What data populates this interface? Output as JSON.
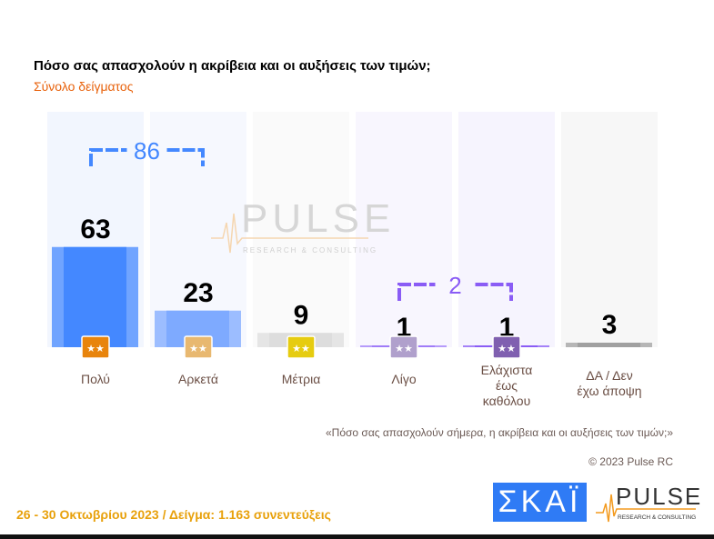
{
  "title": "Πόσο σας απασχολούν η ακρίβεια και οι αυξήσεις των τιμών;",
  "subtitle": "Σύνολο δείγματος",
  "chart_data": {
    "type": "bar",
    "categories": [
      "Πολύ",
      "Αρκετά",
      "Μέτρια",
      "Λίγο",
      "Ελάχιστα έως καθόλου",
      "ΔΑ / Δεν έχω άποψη"
    ],
    "values": [
      63,
      23,
      9,
      1,
      1,
      3
    ],
    "ylim": [
      0,
      100
    ],
    "colors": [
      "#4488ff",
      "#7eaaff",
      "#dddddd",
      "#a07cf8",
      "#8a5cf5",
      "#a0a0a0"
    ],
    "panel_colors": [
      "#f2f6fe",
      "#f6f8fe",
      "#fafafa",
      "#f8f6fe",
      "#f6f4fe",
      "#f7f7f7"
    ],
    "icon_colors": [
      "#e8840c",
      "#e8b870",
      "#e6cc10",
      "#b0a0cc",
      "#8060b0",
      null
    ],
    "groups": [
      {
        "label": "86",
        "from": 0,
        "to": 1,
        "color": "#4488ff"
      },
      {
        "label": "2",
        "from": 3,
        "to": 4,
        "color": "#8a5cf5"
      }
    ],
    "watermark": "PULSE RESEARCH & CONSULTING"
  },
  "note": "«Πόσο σας απασχολούν σήμερα, η ακρίβεια και οι αυξήσεις των τιμών;»",
  "copyright": "© 2023 Pulse RC",
  "footer": "26 - 30  Οκτωβρίου  2023  /  Δείγμα:  1.163 συνεντεύξεις",
  "logos": {
    "skai": "ΣΚΑΪ",
    "pulse": "PULSE",
    "pulse_sub": "RESEARCH & CONSULTING"
  }
}
